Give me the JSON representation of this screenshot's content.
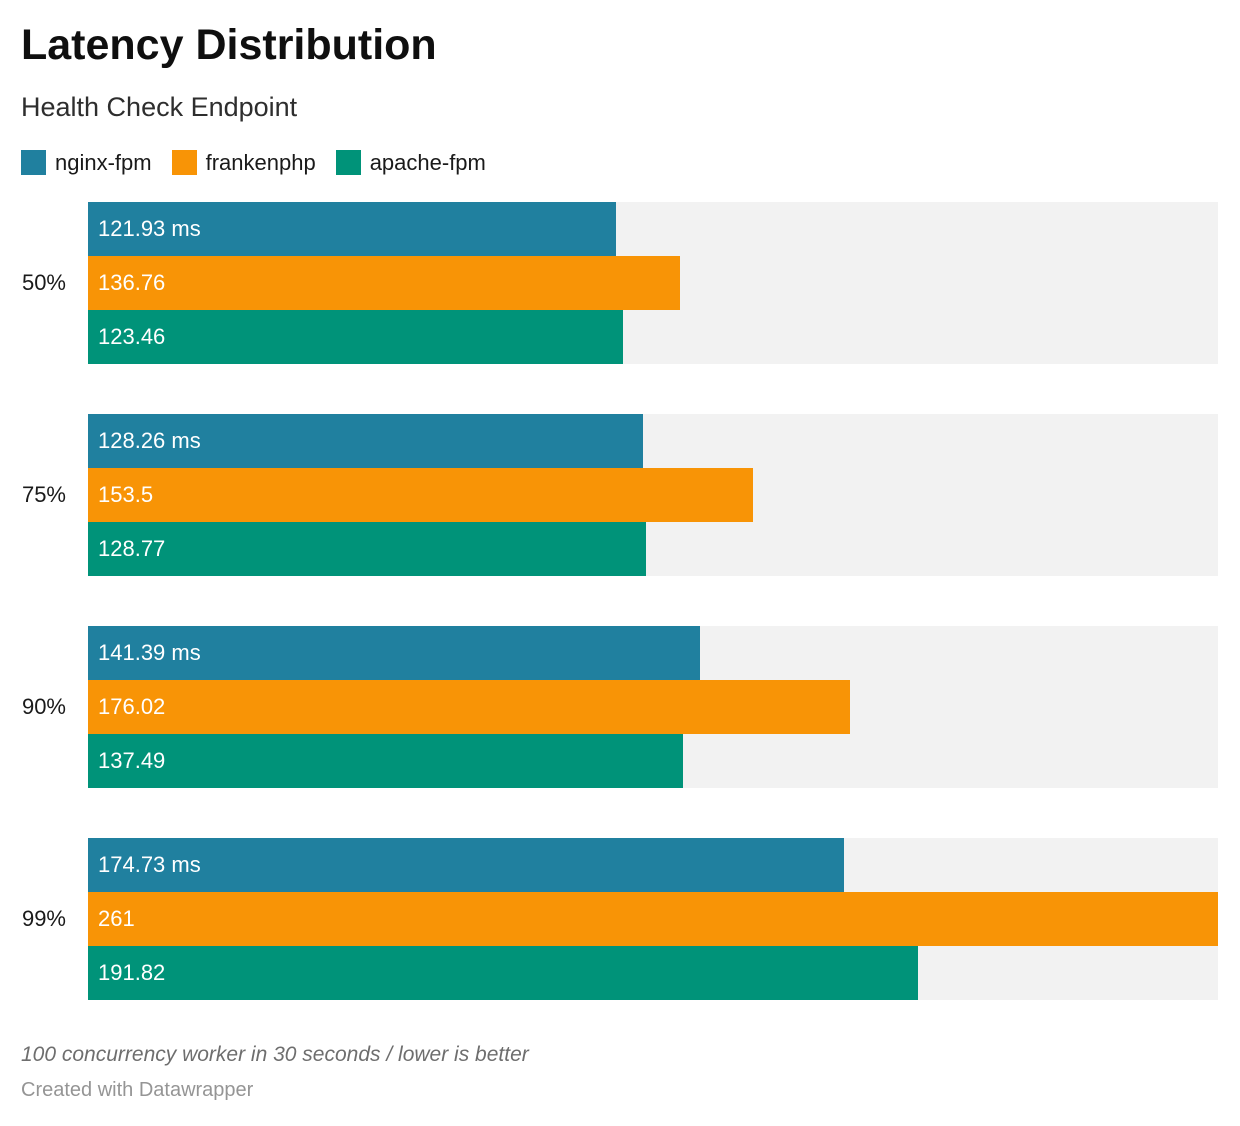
{
  "header": {
    "title": "Latency Distribution",
    "subtitle": "Health Check Endpoint"
  },
  "chart_data": {
    "type": "bar",
    "orientation": "horizontal",
    "title": "Latency Distribution",
    "subtitle": "Health Check Endpoint",
    "categories": [
      "50%",
      "75%",
      "90%",
      "99%"
    ],
    "series": [
      {
        "name": "nginx-fpm",
        "color": "#20809f",
        "values": [
          121.93,
          128.26,
          141.39,
          174.73
        ],
        "labels": [
          "121.93 ms",
          "128.26 ms",
          "141.39 ms",
          "174.73 ms"
        ]
      },
      {
        "name": "frankenphp",
        "color": "#f89406",
        "values": [
          136.76,
          153.5,
          176.02,
          261
        ],
        "labels": [
          "136.76",
          "153.5",
          "176.02",
          "261"
        ]
      },
      {
        "name": "apache-fpm",
        "color": "#009379",
        "values": [
          123.46,
          128.77,
          137.49,
          191.82
        ],
        "labels": [
          "123.46",
          "128.77",
          "137.49",
          "191.82"
        ]
      }
    ],
    "value_unit": "ms",
    "xlim": [
      0,
      261
    ],
    "xmax": 261,
    "track_color": "#f2f2f2",
    "grid": false,
    "legend_position": "top-left"
  },
  "footer": {
    "note": "100 concurrency worker in 30 seconds / lower is better",
    "credit": "Created with Datawrapper"
  }
}
